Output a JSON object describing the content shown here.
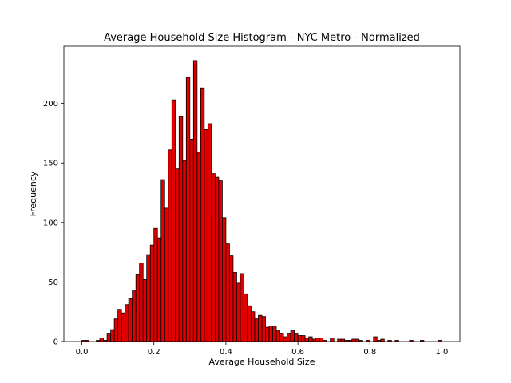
{
  "chart_data": {
    "type": "bar",
    "title": "Average Household Size Histogram - NYC Metro - Normalized",
    "xlabel": "Average Household Size",
    "ylabel": "Frequency",
    "xlim": [
      -0.05,
      1.05
    ],
    "ylim": [
      0,
      248
    ],
    "bin_width": 0.01,
    "xticks": [
      0.0,
      0.2,
      0.4,
      0.6,
      0.8,
      1.0
    ],
    "xtick_labels": [
      "0.0",
      "0.2",
      "0.4",
      "0.6",
      "0.8",
      "1.0"
    ],
    "yticks": [
      0,
      50,
      100,
      150,
      200
    ],
    "ytick_labels": [
      "0",
      "50",
      "100",
      "150",
      "200"
    ],
    "bar_color": "#e00000",
    "edge_color": "#000000",
    "legend": "none",
    "grid": false,
    "bins_start": [
      0.0,
      0.01,
      0.02,
      0.03,
      0.04,
      0.05,
      0.06,
      0.07,
      0.08,
      0.09,
      0.1,
      0.11,
      0.12,
      0.13,
      0.14,
      0.15,
      0.16,
      0.17,
      0.18,
      0.19,
      0.2,
      0.21,
      0.22,
      0.23,
      0.24,
      0.25,
      0.26,
      0.27,
      0.28,
      0.29,
      0.3,
      0.31,
      0.32,
      0.33,
      0.34,
      0.35,
      0.36,
      0.37,
      0.38,
      0.39,
      0.4,
      0.41,
      0.42,
      0.43,
      0.44,
      0.45,
      0.46,
      0.47,
      0.48,
      0.49,
      0.5,
      0.51,
      0.52,
      0.53,
      0.54,
      0.55,
      0.56,
      0.57,
      0.58,
      0.59,
      0.6,
      0.61,
      0.62,
      0.63,
      0.64,
      0.65,
      0.66,
      0.67,
      0.68,
      0.69,
      0.7,
      0.71,
      0.72,
      0.73,
      0.74,
      0.75,
      0.76,
      0.77,
      0.78,
      0.79,
      0.8,
      0.81,
      0.82,
      0.83,
      0.84,
      0.85,
      0.86,
      0.87,
      0.88,
      0.89,
      0.9,
      0.91,
      0.92,
      0.93,
      0.94,
      0.95,
      0.96,
      0.97,
      0.98,
      0.99
    ],
    "values": [
      1,
      1,
      0,
      0,
      1,
      3,
      1,
      7,
      10,
      19,
      27,
      24,
      31,
      36,
      43,
      56,
      66,
      52,
      73,
      81,
      95,
      87,
      136,
      112,
      161,
      203,
      145,
      189,
      152,
      222,
      170,
      236,
      159,
      213,
      178,
      183,
      141,
      138,
      135,
      104,
      82,
      72,
      58,
      49,
      57,
      40,
      30,
      25,
      19,
      22,
      21,
      12,
      13,
      13,
      9,
      7,
      4,
      7,
      9,
      7,
      5,
      5,
      3,
      4,
      2,
      3,
      3,
      1,
      0,
      3,
      0,
      2,
      2,
      1,
      1,
      2,
      2,
      1,
      0,
      1,
      0,
      4,
      1,
      2,
      0,
      1,
      0,
      1,
      0,
      0,
      0,
      1,
      0,
      0,
      1,
      0,
      0,
      0,
      0,
      1
    ]
  }
}
